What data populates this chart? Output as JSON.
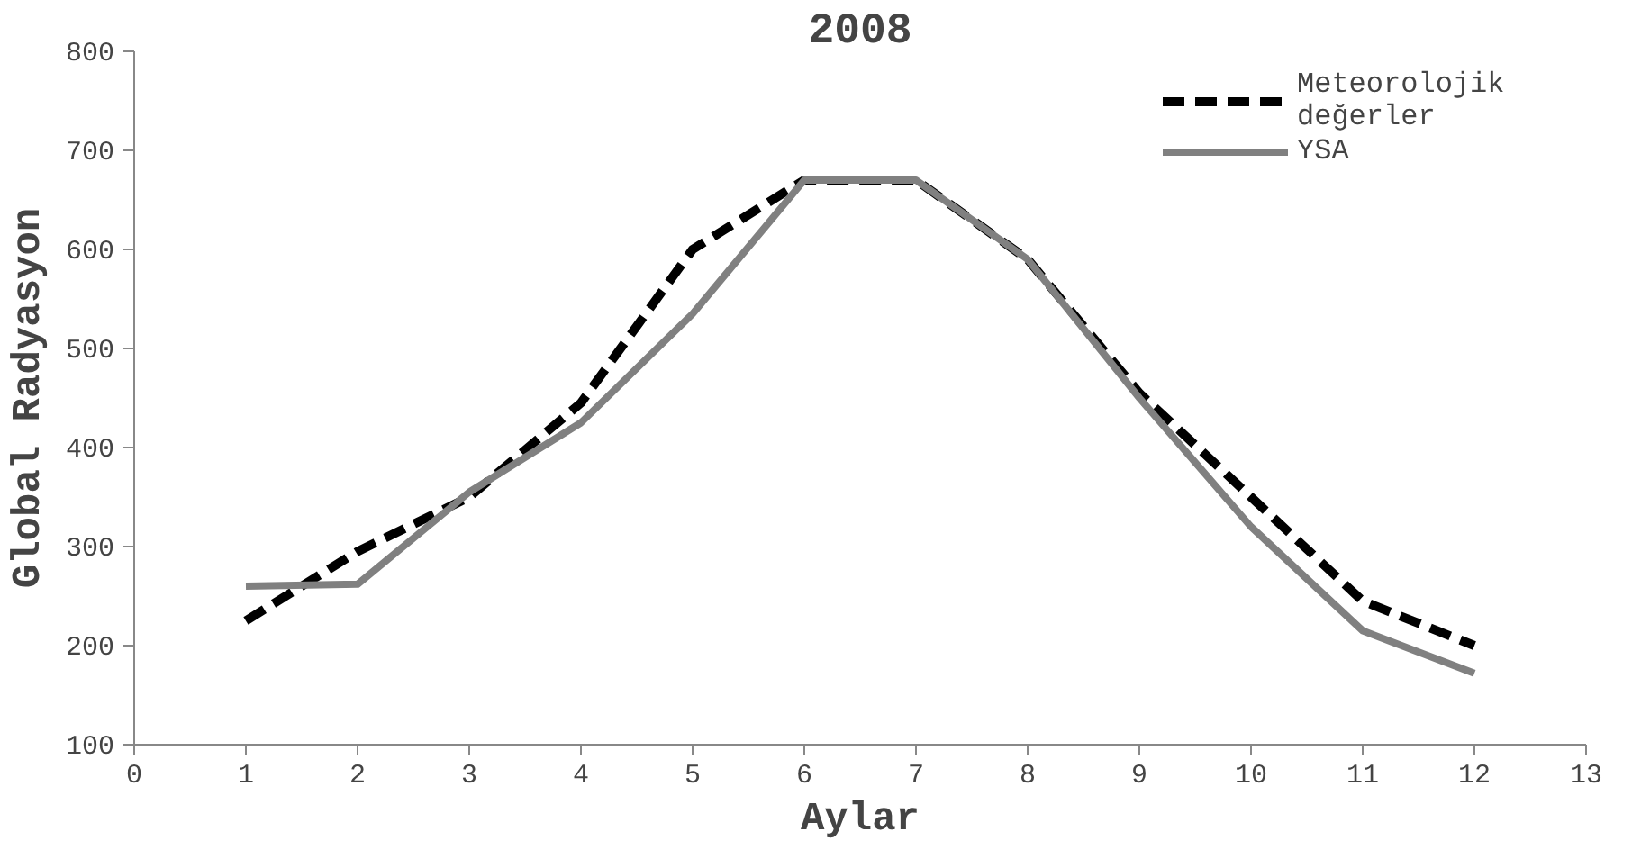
{
  "chart_data": {
    "type": "line",
    "title": "2008",
    "xlabel": "Aylar",
    "ylabel": "Global Radyasyon",
    "x": [
      1,
      2,
      3,
      4,
      5,
      6,
      7,
      8,
      9,
      10,
      11,
      12
    ],
    "series": [
      {
        "name": "Meteorolojik değerler",
        "color": "#000000",
        "line_style": "dashed",
        "values": [
          225,
          295,
          350,
          445,
          600,
          670,
          670,
          590,
          455,
          350,
          245,
          200
        ]
      },
      {
        "name": "YSA",
        "color": "#808080",
        "line_style": "solid",
        "values": [
          260,
          262,
          355,
          425,
          535,
          670,
          670,
          590,
          450,
          320,
          215,
          172
        ]
      }
    ],
    "xlim": [
      0,
      13
    ],
    "xticks": [
      0,
      1,
      2,
      3,
      4,
      5,
      6,
      7,
      8,
      9,
      10,
      11,
      12,
      13
    ],
    "ylim": [
      100,
      800
    ],
    "yticks": [
      100,
      200,
      300,
      400,
      500,
      600,
      700,
      800
    ],
    "grid": false,
    "legend": "top right",
    "marker": "none"
  }
}
